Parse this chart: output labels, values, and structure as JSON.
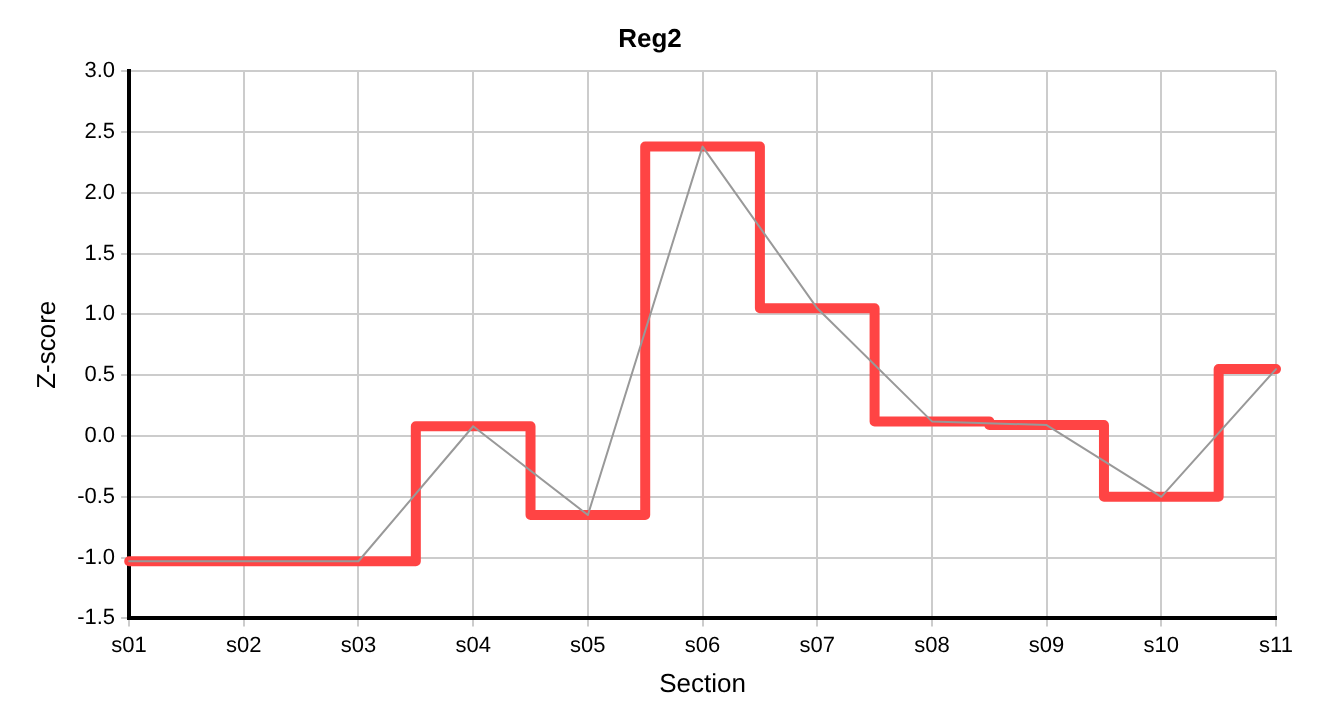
{
  "chart_data": {
    "type": "line",
    "title": "Reg2",
    "xlabel": "Section",
    "ylabel": "Z-score",
    "categories": [
      "s01",
      "s02",
      "s03",
      "s04",
      "s05",
      "s06",
      "s07",
      "s08",
      "s09",
      "s10",
      "s11"
    ],
    "series": [
      {
        "type": "line",
        "color": "#999999",
        "values": [
          -1.03,
          -1.03,
          -1.03,
          0.08,
          -0.65,
          2.38,
          1.05,
          0.12,
          0.09,
          -0.5,
          0.55
        ]
      },
      {
        "type": "step",
        "color": "#ff4444",
        "values": [
          -1.03,
          -1.03,
          -1.03,
          0.08,
          -0.65,
          2.38,
          1.05,
          0.12,
          0.09,
          -0.5,
          0.55
        ]
      }
    ],
    "ylim": [
      -1.5,
      3.0
    ],
    "yticks": [
      {
        "value": -1.5,
        "label": "-1.5"
      },
      {
        "value": -1,
        "label": "-1.0"
      },
      {
        "value": -0.5,
        "label": "-0.5"
      },
      {
        "value": 0,
        "label": "0.0"
      },
      {
        "value": 0.5,
        "label": "0.5"
      },
      {
        "value": 1,
        "label": "1.0"
      },
      {
        "value": 1.5,
        "label": "1.5"
      },
      {
        "value": 2,
        "label": "2.0"
      },
      {
        "value": 2.5,
        "label": "2.5"
      },
      {
        "value": 3,
        "label": "3.0"
      }
    ],
    "grid": true,
    "legend": false,
    "marker": "none"
  }
}
